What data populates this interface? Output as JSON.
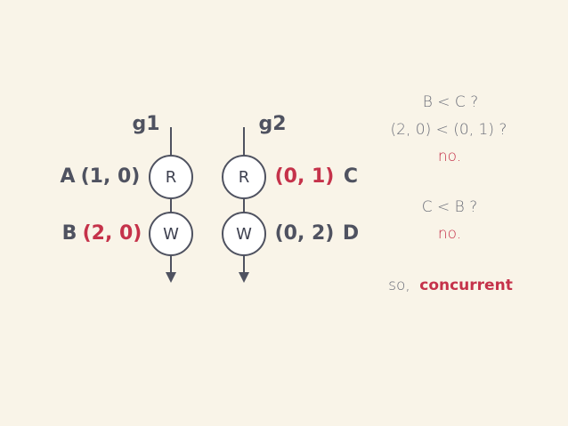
{
  "goroutines": [
    {
      "label": "g1",
      "events": [
        {
          "name": "A",
          "op": "R",
          "clock": "(1, 0)",
          "highlight": false
        },
        {
          "name": "B",
          "op": "W",
          "clock": "(2, 0)",
          "highlight": true
        }
      ]
    },
    {
      "label": "g2",
      "events": [
        {
          "name": "C",
          "op": "R",
          "clock": "(0, 1)",
          "highlight": true
        },
        {
          "name": "D",
          "op": "W",
          "clock": "(0, 2)",
          "highlight": false
        }
      ]
    }
  ],
  "analysis": {
    "q1": "B < C ?",
    "q1_detail": "(2, 0) < (0, 1) ?",
    "q1_answer": "no.",
    "q2": "C < B ?",
    "q2_answer": "no.",
    "conclusion_prefix": "so,",
    "conclusion": "concurrent"
  },
  "colors": {
    "line": "#4f5260",
    "highlight": "#c5324a",
    "background": "#f9f4e8"
  }
}
